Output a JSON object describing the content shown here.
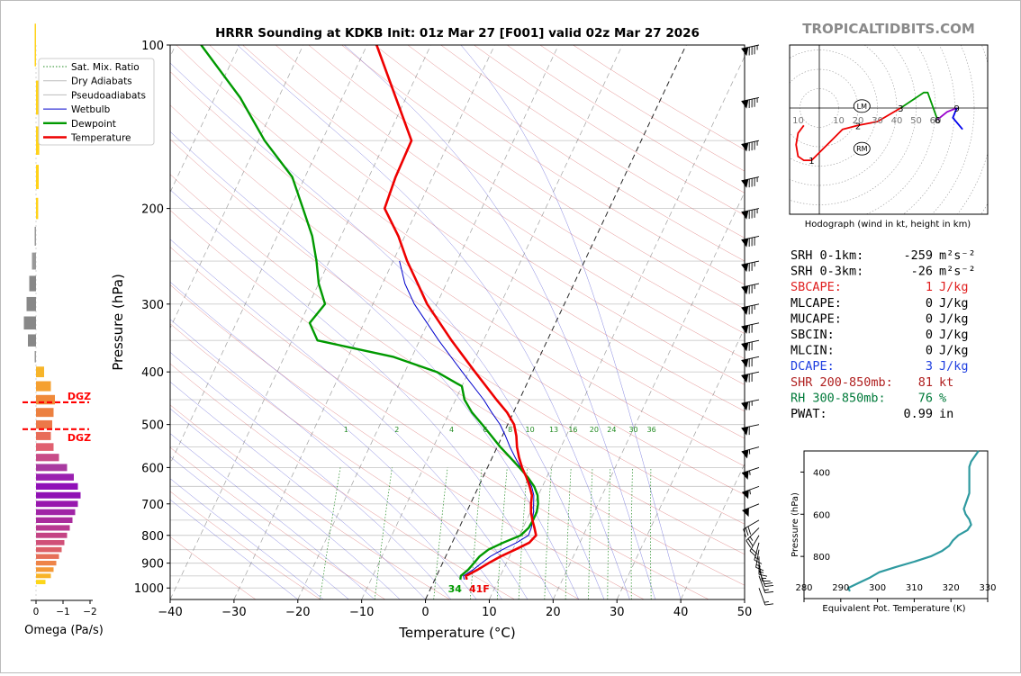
{
  "watermark": "TROPICALTIDBITS.COM",
  "colors": {
    "temperature": "#ee0000",
    "dewpoint": "#009900",
    "wetbulb": "#0000cc",
    "sat_mix": "#228b22",
    "dry_adiabat": "#cc3333",
    "pseudo_adiabat": "#3333cc",
    "isotherm": "#555555",
    "wind_grey": "#777777",
    "brand_grey": "#8a8a8a",
    "theta_line": "#2f9aa0",
    "dgz": "#ff0000",
    "sbcape_label": "#e02020",
    "dcape_label": "#2040e0",
    "shr_label": "#b02020",
    "rh_label": "#007a3a"
  },
  "chart_data": [
    {
      "id": "skewt",
      "type": "line",
      "title": "HRRR Sounding at KDKB Init: 01z Mar 27 [F001] valid 02z Mar 27 2026",
      "xlabel": "Temperature (°C)",
      "ylabel": "Pressure (hPa)",
      "xlim": [
        -40,
        50
      ],
      "ylim": [
        1050,
        100
      ],
      "skew_deg_per_log": 40,
      "xticks": [
        "−40",
        "−30",
        "−20",
        "−10",
        "0",
        "10",
        "20",
        "30",
        "40",
        "50"
      ],
      "xtick_values": [
        -40,
        -30,
        -20,
        -10,
        0,
        10,
        20,
        30,
        40,
        50
      ],
      "yticks": [
        100,
        200,
        300,
        400,
        500,
        600,
        700,
        800,
        900,
        1000
      ],
      "gridline_pressures": [
        100,
        150,
        200,
        250,
        300,
        350,
        400,
        450,
        500,
        550,
        600,
        650,
        700,
        750,
        800,
        850,
        900,
        950,
        1000
      ],
      "legend": {
        "position": "top-left",
        "entries": [
          "Sat. Mix. Ratio",
          "Dry Adiabats",
          "Pseudoadiabats",
          "Wetbulb",
          "Dewpoint",
          "Temperature"
        ]
      },
      "mixing_ratio_labels": [
        "1",
        "2",
        "4",
        "6",
        "8",
        "10",
        "13",
        "16",
        "20",
        "24",
        "30",
        "36"
      ],
      "mixing_ratio_values": [
        1,
        2,
        4,
        6,
        8,
        10,
        13,
        16,
        20,
        24,
        30,
        36
      ],
      "surface_label": "34",
      "surface_temp_label": "41F",
      "series": [
        {
          "name": "Temperature",
          "pressure": [
            965,
            950,
            925,
            900,
            875,
            850,
            825,
            800,
            775,
            750,
            725,
            700,
            675,
            650,
            625,
            600,
            575,
            550,
            525,
            500,
            475,
            450,
            400,
            350,
            300,
            275,
            250,
            225,
            200,
            175,
            150,
            100
          ],
          "values": [
            5.0,
            4.6,
            6.0,
            7.2,
            8.6,
            10.4,
            12.1,
            12.6,
            11.8,
            10.9,
            10.1,
            9.5,
            9.0,
            8.0,
            6.8,
            5.4,
            4.2,
            3.1,
            2.2,
            1.0,
            -1.0,
            -3.6,
            -9.0,
            -15.0,
            -21.5,
            -24.5,
            -27.8,
            -31.0,
            -35.2,
            -35.8,
            -36.0,
            -48.5
          ]
        },
        {
          "name": "Dewpoint",
          "pressure": [
            965,
            950,
            925,
            900,
            875,
            850,
            825,
            800,
            775,
            750,
            725,
            700,
            675,
            650,
            625,
            600,
            575,
            550,
            525,
            500,
            475,
            450,
            425,
            400,
            375,
            350,
            325,
            300,
            275,
            250,
            225,
            200,
            175,
            150,
            125,
            100
          ],
          "values": [
            4.0,
            3.8,
            4.5,
            4.9,
            5.3,
            6.2,
            8.0,
            10.2,
            10.9,
            11.0,
            11.0,
            10.6,
            9.9,
            8.7,
            7.0,
            5.0,
            2.8,
            0.5,
            -1.7,
            -4.0,
            -6.5,
            -8.6,
            -10.0,
            -15.0,
            -23.0,
            -36.0,
            -38.5,
            -37.5,
            -40.0,
            -42.0,
            -44.5,
            -48.0,
            -52.0,
            -59.0,
            -66.0,
            -76.0
          ]
        },
        {
          "name": "Wetbulb",
          "pressure": [
            965,
            950,
            925,
            900,
            875,
            850,
            825,
            800,
            775,
            750,
            725,
            700,
            675,
            650,
            625,
            600,
            575,
            550,
            525,
            500,
            475,
            450,
            400,
            350,
            300,
            275,
            250
          ],
          "values": [
            4.6,
            4.2,
            5.3,
            6.1,
            7.0,
            8.4,
            10.1,
            11.4,
            11.3,
            10.9,
            10.5,
            9.9,
            9.3,
            8.3,
            6.9,
            5.2,
            3.6,
            2.0,
            0.5,
            -1.2,
            -3.4,
            -5.6,
            -11.0,
            -17.0,
            -23.5,
            -26.5,
            -29.0
          ]
        }
      ]
    },
    {
      "id": "omega",
      "type": "bar",
      "xlabel": "Omega (Pa/s)",
      "xlim": [
        0.3,
        -2.3
      ],
      "xticks": [
        "0",
        "−1",
        "−2"
      ],
      "xtick_values": [
        0,
        -1,
        -2
      ],
      "dgz_label": "DGZ",
      "dgz_pressures": [
        455,
        510
      ],
      "pressure": [
        100,
        125,
        150,
        175,
        200,
        225,
        250,
        275,
        300,
        325,
        350,
        375,
        400,
        425,
        450,
        475,
        500,
        525,
        550,
        575,
        600,
        625,
        650,
        675,
        700,
        725,
        750,
        775,
        800,
        825,
        850,
        875,
        900,
        925,
        950,
        975
      ],
      "values": [
        0.05,
        -0.1,
        -0.12,
        -0.1,
        -0.08,
        0.05,
        0.15,
        0.25,
        0.35,
        0.45,
        0.3,
        0.05,
        -0.3,
        -0.55,
        -0.7,
        -0.65,
        -0.6,
        -0.55,
        -0.65,
        -0.85,
        -1.15,
        -1.4,
        -1.55,
        -1.65,
        -1.55,
        -1.45,
        -1.35,
        -1.25,
        -1.15,
        -1.05,
        -0.95,
        -0.85,
        -0.75,
        -0.65,
        -0.55,
        -0.35
      ],
      "bar_colors": [
        "#ffd21a",
        "#ffd21a",
        "#ffd21a",
        "#ffd21a",
        "#ffd21a",
        "#999999",
        "#999999",
        "#888888",
        "#888888",
        "#888888",
        "#888888",
        "#999999",
        "#f7b52a",
        "#f5a030",
        "#f08a3a",
        "#ec8040",
        "#ec7848",
        "#e86c58",
        "#e06070",
        "#c84c88",
        "#a83aa0",
        "#9a20b0",
        "#9010b8",
        "#9012b4",
        "#9818ae",
        "#a024a6",
        "#aa2c9c",
        "#b83890",
        "#c44484",
        "#d05078",
        "#dc6068",
        "#e67058",
        "#ee8448",
        "#f49a38",
        "#f8b428",
        "#fcd61a"
      ]
    },
    {
      "id": "hodograph",
      "type": "line",
      "caption": "Hodograph (wind in kt, height in km)",
      "ring_labels": [
        "10",
        "10",
        "20",
        "30",
        "40",
        "50",
        "60",
        "60"
      ],
      "ring_values": [
        -10,
        10,
        20,
        30,
        40,
        50,
        60,
        60
      ],
      "storm_motion_labels": [
        "LM",
        "RM"
      ],
      "left_mover": [
        22,
        1
      ],
      "right_mover": [
        22,
        -21
      ],
      "height_labels": [
        "1",
        "2",
        "3",
        "6",
        "9"
      ],
      "height_marker_points": [
        [
          -4,
          -27
        ],
        [
          20,
          -9
        ],
        [
          42,
          0
        ],
        [
          61,
          -6
        ],
        [
          71,
          0
        ]
      ],
      "segments": [
        {
          "name": "0-1 km",
          "color": "#ee0000",
          "u": [
            -8,
            -11,
            -12,
            -11,
            -8,
            -4
          ],
          "v": [
            -9,
            -13,
            -19,
            -25,
            -27,
            -27
          ]
        },
        {
          "name": "1-3 km",
          "color": "#ee0000",
          "u": [
            -4,
            5,
            12,
            20,
            30,
            42
          ],
          "v": [
            -27,
            -18,
            -11,
            -9,
            -7,
            0
          ]
        },
        {
          "name": "3-6 km",
          "color": "#009900",
          "u": [
            42,
            48,
            54,
            56,
            61
          ],
          "v": [
            0,
            4,
            8,
            8,
            -6
          ]
        },
        {
          "name": "6-9 km",
          "color": "#9900cc",
          "u": [
            61,
            66,
            71
          ],
          "v": [
            -6,
            -2,
            0
          ]
        },
        {
          "name": "9+ km",
          "color": "#0000ee",
          "u": [
            71,
            69,
            74
          ],
          "v": [
            0,
            -5,
            -11
          ]
        }
      ]
    },
    {
      "id": "theta_e",
      "type": "line",
      "xlabel": "Equivalent Pot. Temperature (K)",
      "ylabel": "Pressure (hPa)",
      "xlim": [
        280,
        330
      ],
      "ylim": [
        1000,
        300
      ],
      "xticks": [
        "280",
        "290",
        "300",
        "310",
        "320",
        "330"
      ],
      "xtick_values": [
        280,
        290,
        300,
        310,
        320,
        330
      ],
      "yticks": [
        "400",
        "600",
        "800"
      ],
      "ytick_values": [
        400,
        600,
        800
      ],
      "pressure": [
        965,
        950,
        925,
        900,
        875,
        850,
        825,
        800,
        775,
        750,
        725,
        700,
        675,
        650,
        625,
        600,
        575,
        550,
        525,
        500,
        475,
        450,
        425,
        400,
        375,
        350,
        325,
        300
      ],
      "values": [
        292.5,
        292,
        295,
        298,
        300.5,
        305,
        310,
        314.5,
        317.5,
        319.5,
        320.5,
        322,
        324.5,
        325.5,
        325,
        324,
        323.5,
        324,
        324.5,
        325,
        325,
        325,
        325,
        325,
        325,
        325.5,
        326.5,
        327.5
      ]
    }
  ],
  "wind_barbs": {
    "pressure": [
      100,
      125,
      150,
      175,
      200,
      225,
      250,
      275,
      300,
      325,
      350,
      375,
      400,
      450,
      500,
      550,
      600,
      650,
      700,
      750,
      775,
      800,
      825,
      850,
      875,
      900,
      925,
      950,
      1000
    ],
    "speed_kt": [
      85,
      85,
      85,
      85,
      85,
      80,
      75,
      75,
      75,
      70,
      70,
      70,
      70,
      65,
      60,
      55,
      55,
      55,
      50,
      30,
      25,
      20,
      15,
      15,
      15,
      15,
      20,
      15,
      15
    ],
    "direction_deg": [
      258,
      258,
      258,
      258,
      258,
      258,
      258,
      258,
      258,
      258,
      258,
      258,
      258,
      258,
      258,
      255,
      252,
      250,
      248,
      240,
      225,
      210,
      195,
      190,
      180,
      170,
      160,
      160,
      160
    ]
  },
  "indices": [
    {
      "label": "SRH 0-1km:",
      "value": "-259",
      "unit": "m²s⁻²",
      "color": "#000000"
    },
    {
      "label": "SRH 0-3km:",
      "value": "-26",
      "unit": "m²s⁻²",
      "color": "#000000"
    },
    {
      "label": "SBCAPE:",
      "value": "1",
      "unit": "J/kg",
      "color": "#e02020"
    },
    {
      "label": "MLCAPE:",
      "value": "0",
      "unit": "J/kg",
      "color": "#000000"
    },
    {
      "label": "MUCAPE:",
      "value": "0",
      "unit": "J/kg",
      "color": "#000000"
    },
    {
      "label": "SBCIN:",
      "value": "0",
      "unit": "J/kg",
      "color": "#000000"
    },
    {
      "label": "MLCIN:",
      "value": "0",
      "unit": "J/kg",
      "color": "#000000"
    },
    {
      "label": "DCAPE:",
      "value": "3",
      "unit": "J/kg",
      "color": "#2040e0"
    },
    {
      "label": "SHR 200-850mb:",
      "value": "81",
      "unit": "kt",
      "color": "#b02020"
    },
    {
      "label": "RH 300-850mb:",
      "value": "76",
      "unit": "%",
      "color": "#007a3a"
    },
    {
      "label": "PWAT:",
      "value": "0.99",
      "unit": "in",
      "color": "#000000"
    }
  ]
}
